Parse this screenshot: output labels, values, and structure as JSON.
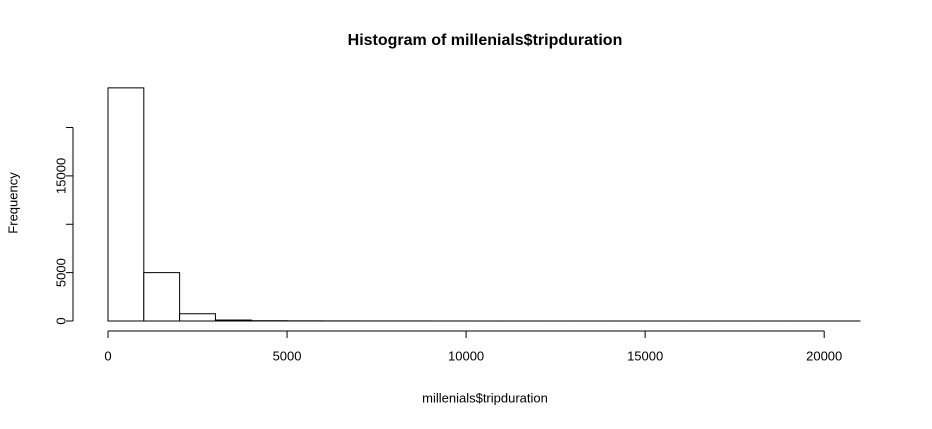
{
  "chart_data": {
    "type": "histogram",
    "title": "Histogram of millenials$tripduration",
    "x_label": "millenials$tripduration",
    "y_label": "Frequency",
    "bins": [
      0,
      1000,
      2000,
      3000,
      4000,
      5000,
      6000,
      7000,
      8000,
      9000,
      10000,
      11000,
      12000,
      13000,
      14000,
      15000,
      16000,
      17000,
      18000,
      19000,
      20000,
      21000
    ],
    "counts": [
      24100,
      5000,
      750,
      100,
      30,
      15,
      10,
      5,
      5,
      3,
      2,
      2,
      1,
      1,
      1,
      1,
      1,
      1,
      1,
      1,
      1
    ],
    "color": "#ffffff",
    "edge_color": "#000000",
    "xlim": [
      0,
      21000
    ],
    "ylim": [
      0,
      24500
    ],
    "xticks": [
      0,
      5000,
      10000,
      15000,
      20000
    ],
    "yticks": [
      0,
      5000,
      {
        "value": 10000,
        "label": null
      },
      15000,
      {
        "value": 20000,
        "label": null
      }
    ],
    "grid": false
  }
}
